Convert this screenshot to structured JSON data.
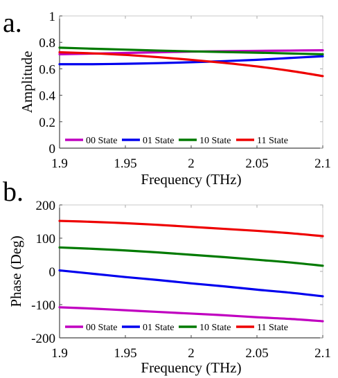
{
  "colors": {
    "00 State": "#c000c0",
    "01 State": "#0000ee",
    "10 State": "#007a00",
    "11 State": "#ee0000"
  },
  "chart_data": [
    {
      "type": "line",
      "panel_label": "a.",
      "xlabel": "Frequency (THz)",
      "ylabel": "Amplitude",
      "xlim": [
        1.9,
        2.1
      ],
      "ylim": [
        0,
        1
      ],
      "xticks": [
        1.9,
        1.95,
        2,
        2.05,
        2.1
      ],
      "xtick_labels": [
        "1.9",
        "1.95",
        "2",
        "2.05",
        "2.1"
      ],
      "yticks": [
        0,
        0.2,
        0.4,
        0.6,
        0.8,
        1
      ],
      "ytick_labels": [
        "0",
        "0.2",
        "0.4",
        "0.6",
        "0.8",
        "1"
      ],
      "grid": false,
      "legend": "bottom-left",
      "x": [
        1.9,
        1.925,
        1.95,
        1.975,
        2.0,
        2.025,
        2.05,
        2.075,
        2.1
      ],
      "series": [
        {
          "name": "00 State",
          "values": [
            0.71,
            0.715,
            0.72,
            0.725,
            0.73,
            0.733,
            0.736,
            0.738,
            0.74
          ]
        },
        {
          "name": "01 State",
          "values": [
            0.635,
            0.635,
            0.638,
            0.643,
            0.65,
            0.658,
            0.668,
            0.682,
            0.695
          ]
        },
        {
          "name": "10 State",
          "values": [
            0.76,
            0.752,
            0.745,
            0.738,
            0.732,
            0.727,
            0.722,
            0.716,
            0.71
          ]
        },
        {
          "name": "11 State",
          "values": [
            0.725,
            0.717,
            0.705,
            0.688,
            0.668,
            0.645,
            0.618,
            0.585,
            0.545
          ]
        }
      ]
    },
    {
      "type": "line",
      "panel_label": "b.",
      "xlabel": "Frequency (THz)",
      "ylabel": "Phase (Deg)",
      "xlim": [
        1.9,
        2.1
      ],
      "ylim": [
        -200,
        200
      ],
      "xticks": [
        1.9,
        1.95,
        2,
        2.05,
        2.1
      ],
      "xtick_labels": [
        "1.9",
        "1.95",
        "2",
        "2.05",
        "2.1"
      ],
      "yticks": [
        -200,
        -100,
        0,
        100,
        200
      ],
      "ytick_labels": [
        "-200",
        "-100",
        "0",
        "100",
        "200"
      ],
      "grid": false,
      "legend": "bottom-left",
      "x": [
        1.9,
        1.925,
        1.95,
        1.975,
        2.0,
        2.025,
        2.05,
        2.075,
        2.1
      ],
      "series": [
        {
          "name": "00 State",
          "values": [
            -108,
            -112,
            -117,
            -122,
            -127,
            -132,
            -138,
            -143,
            -150
          ]
        },
        {
          "name": "01 State",
          "values": [
            3,
            -7,
            -17,
            -26,
            -36,
            -45,
            -55,
            -64,
            -75
          ]
        },
        {
          "name": "10 State",
          "values": [
            72,
            68,
            63,
            57,
            50,
            43,
            35,
            27,
            17
          ]
        },
        {
          "name": "11 State",
          "values": [
            152,
            149,
            145,
            140,
            134,
            128,
            122,
            115,
            106
          ]
        }
      ]
    }
  ]
}
